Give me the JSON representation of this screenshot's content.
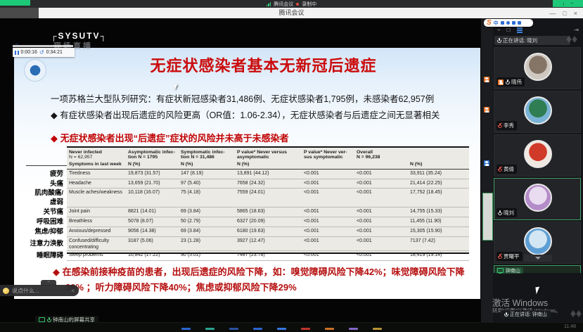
{
  "top": {
    "status_app": "腾讯会议",
    "status_recording": "录制中",
    "window_title": "腾讯会议",
    "controls": {
      "minimize": "—",
      "maximize": "□",
      "close": "×"
    },
    "recorder": {
      "download": "↓",
      "minimize": "−"
    }
  },
  "ime": {
    "logo": "S",
    "mode": "中"
  },
  "slide": {
    "logo_overlay": {
      "brand": "SYSUTV",
      "tagline": "现场直播"
    },
    "player": {
      "elapsed": "0:00:16",
      "total": "0:34:21",
      "skip": "→"
    },
    "title": "无症状感染者基本无新冠后遗症",
    "lines": {
      "intro": "一项苏格兰大型队列研究：有症状新冠感染者31,486例、无症状感染者1,795例，未感染者62,957例",
      "bullet_or": "◆ 有症状感染者出现后遗症的风险更高（OR值：1.06-2.34），无症状感染者与后遗症之间无显著相关",
      "bullet_red": "◆ 无症状感染者出现“后遗症”症状的风险并未高于未感染者",
      "vaccine_line1": "◆ 在感染前接种疫苗的患者，出现后遗症的风险下降，如：嗅觉障碍风险下降42%；味觉障碍风险下降",
      "vaccine_line2": "39% ；听力障碍风险下降40%；焦虑或抑郁风险下降29%"
    },
    "table": {
      "headers": [
        {
          "l1": "",
          "l2": ""
        },
        {
          "l1": "Never infected",
          "l2": "N = 62,957"
        },
        {
          "l1": "Asymptomatic infec-",
          "l2": "tion N = 1795"
        },
        {
          "l1": "Symptomatic infec-",
          "l2": "tion N = 31,486"
        },
        {
          "l1": "P value* Never versus",
          "l2": "asymptomatic"
        },
        {
          "l1": "P value* Never ver-",
          "l2": "sus symptomatic"
        },
        {
          "l1": "Overall",
          "l2": "N = 96,238"
        }
      ],
      "subheader": [
        "Symptoms in last week",
        "N (%)",
        "N (%)",
        "N (%)",
        "",
        "",
        "N (%)"
      ],
      "rows": [
        [
          "疲劳",
          "Tiredness",
          "19,873 (31.57)",
          "147 (8.19)",
          "13,891 (44.12)",
          "<0.001",
          "<0.001",
          "33,911 (35.24)"
        ],
        [
          "头痛",
          "Headache",
          "13,659 (21.70)",
          "97 (5.40)",
          "7658 (24.32)",
          "<0.001",
          "<0.001",
          "21,414 (22.25)"
        ],
        [
          "肌肉酸痛/虚弱",
          "Muscle aches/weakness",
          "10,118 (16.07)",
          "75 (4.18)",
          "7559 (24.01)",
          "<0.001",
          "<0.001",
          "17,752 (18.45)"
        ],
        [
          "关节痛",
          "Joint pain",
          "8821 (14.01)",
          "69 (3.84)",
          "5865 (18.63)",
          "<0.001",
          "<0.001",
          "14,755 (15.33)"
        ],
        [
          "呼吸困难",
          "Breathless",
          "5078 (8.07)",
          "50 (2.79)",
          "6327 (20.09)",
          "<0.001",
          "<0.001",
          "11,455 (11.90)"
        ],
        [
          "焦虑/抑郁",
          "Anxious/depressed",
          "9056 (14.38)",
          "69 (3.84)",
          "6180 (19.63)",
          "<0.001",
          "<0.001",
          "15,305 (15.90)"
        ],
        [
          "注意力涣散",
          "Confused/difficulty concentrating",
          "3187 (5.06)",
          "23 (1.28)",
          "3927 (12.47)",
          "<0.001",
          "<0.001",
          "7137 (7.42)"
        ],
        [
          "睡眠障碍",
          "Sleep problems",
          "10,842 (17.22)",
          "90 (5.01)",
          "7487 (23.78)",
          "<0.001",
          "<0.001",
          "18,419 (19.14)"
        ]
      ]
    }
  },
  "share": {
    "label": "钟南山的屏幕共享"
  },
  "chat": {
    "placeholder": "说点什么...",
    "collapse": "<",
    "handle": "−"
  },
  "sidebar": {
    "controls": {
      "minimize": "−",
      "restore": "□",
      "popout": "⇥"
    },
    "speaking_label": "正在讲话: 晓刘",
    "participants": [
      {
        "name": "晓伟",
        "muted": false,
        "member_badge": true,
        "speaking": false,
        "avatar": {
          "inner": "#857567",
          "outer": "#cfc8c0"
        }
      },
      {
        "name": "李秀",
        "muted": true,
        "member_badge": false,
        "speaking": false,
        "avatar": {
          "inner": "#2f7d52",
          "outer": "#7ab3d6"
        }
      },
      {
        "name": "黄倩",
        "muted": true,
        "member_badge": false,
        "speaking": false,
        "avatar": {
          "inner": "#d03a28",
          "outer": "#efe8e0"
        }
      },
      {
        "name": "晓刘",
        "muted": false,
        "member_badge": false,
        "speaking": true,
        "avatar": {
          "inner": "#e9dcf0",
          "outer": "#b48cc8"
        }
      },
      {
        "name": "贾曙平",
        "muted": true,
        "member_badge": false,
        "speaking": false,
        "expand": true,
        "avatar": {
          "inner": "#d3e6f3",
          "outer": "#5d9fd4"
        }
      }
    ],
    "sharing_tile": {
      "name": "钟南山"
    }
  },
  "windows_watermark": {
    "line1": "激活 Windows",
    "line2": "转到“设置”以激活 Windows。"
  },
  "overlay": {
    "speaking": "正在讲话: 钟南山"
  },
  "taskbar": {
    "time": "11:48",
    "indicator_colors": [
      "#2f6fe4",
      "#2fb5a0",
      "#2c59b0",
      "#2f6fe4",
      "#3b82f6",
      "#d23a2f",
      "#e07b2a",
      "#8f6fd8",
      "#c9a23a"
    ]
  }
}
